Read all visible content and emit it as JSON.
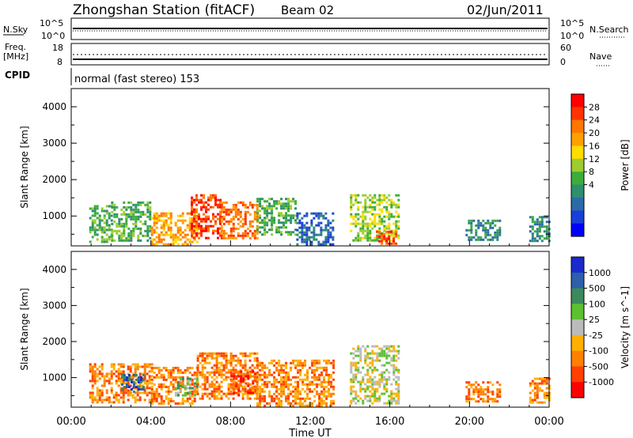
{
  "header": {
    "station": "Zhongshan Station (fitACF)",
    "beam": "Beam 02",
    "date": "02/Jun/2011"
  },
  "summary": {
    "nsky_label": "N.Sky",
    "nsky_ticks": [
      "10^5",
      "10^0"
    ],
    "nsearch_label": "N.Search",
    "nsearch_ticks": [
      "10^5",
      "10^0"
    ],
    "freq_label": "Freq.",
    "freq_unit": "[MHz]",
    "freq_ticks": [
      "18",
      "8"
    ],
    "nave_label": "Nave",
    "nave_ticks": [
      "60",
      "0"
    ],
    "cpid_label": "CPID",
    "cpid_text": "normal (fast stereo) 153"
  },
  "chart_data": [
    {
      "type": "heatmap",
      "name": "power",
      "ylabel": "Slant Range [km]",
      "yticks": [
        "4000",
        "3000",
        "2000",
        "1000"
      ],
      "ylim": [
        180,
        4500
      ],
      "xlim": [
        0,
        24
      ],
      "colorbar_label": "Power [dB]",
      "colorbar_ticks": [
        "28",
        "24",
        "20",
        "16",
        "12",
        "8",
        "4"
      ],
      "colorbar_colors": [
        "#ff0000",
        "#ff3300",
        "#ff7700",
        "#ffa000",
        "#ffdd00",
        "#9ccc30",
        "#3cad3c",
        "#2d8f6e",
        "#2b6aa8",
        "#1a3fd8",
        "#0000ff"
      ],
      "echo_regions": [
        {
          "t0": 0.9,
          "t1": 2.0,
          "r0": 300,
          "r1": 1300,
          "level": 6
        },
        {
          "t0": 2.0,
          "t1": 4.0,
          "r0": 300,
          "r1": 1400,
          "level": 6
        },
        {
          "t0": 4.0,
          "t1": 6.3,
          "r0": 250,
          "r1": 1100,
          "level": 3
        },
        {
          "t0": 6.0,
          "t1": 7.5,
          "r0": 400,
          "r1": 1600,
          "level": 1
        },
        {
          "t0": 7.5,
          "t1": 9.3,
          "r0": 400,
          "r1": 1400,
          "level": 2
        },
        {
          "t0": 9.3,
          "t1": 11.3,
          "r0": 500,
          "r1": 1500,
          "level": 6
        },
        {
          "t0": 11.3,
          "t1": 13.2,
          "r0": 250,
          "r1": 1100,
          "level": 8
        },
        {
          "t0": 14.0,
          "t1": 16.5,
          "r0": 300,
          "r1": 1600,
          "level": 5
        },
        {
          "t0": 15.3,
          "t1": 16.3,
          "r0": 250,
          "r1": 600,
          "level": 1
        },
        {
          "t0": 19.8,
          "t1": 21.5,
          "r0": 350,
          "r1": 900,
          "level": 7
        },
        {
          "t0": 23.0,
          "t1": 24.0,
          "r0": 300,
          "r1": 1000,
          "level": 7
        }
      ]
    },
    {
      "type": "heatmap",
      "name": "velocity",
      "ylabel": "Slant Range [km]",
      "yticks": [
        "4000",
        "3000",
        "2000",
        "1000"
      ],
      "ylim": [
        180,
        4500
      ],
      "xlim": [
        0,
        24
      ],
      "colorbar_label": "Velocity [m s^-1]",
      "colorbar_ticks": [
        "1000",
        "500",
        "100",
        "25",
        "-25",
        "-100",
        "-500",
        "-1000"
      ],
      "colorbar_colors": [
        "#1a2acc",
        "#2d5faa",
        "#3c8a5c",
        "#5cc030",
        "#bbbbbb",
        "#ffb000",
        "#ff8000",
        "#ff4000",
        "#ff0000"
      ],
      "echo_regions": [
        {
          "t0": 0.9,
          "t1": 4.0,
          "r0": 300,
          "r1": 1400,
          "level": 6
        },
        {
          "t0": 2.5,
          "t1": 3.6,
          "r0": 600,
          "r1": 1100,
          "level": 1
        },
        {
          "t0": 4.0,
          "t1": 6.3,
          "r0": 250,
          "r1": 1300,
          "level": 6
        },
        {
          "t0": 5.2,
          "t1": 6.3,
          "r0": 500,
          "r1": 1000,
          "level": 3
        },
        {
          "t0": 6.3,
          "t1": 9.3,
          "r0": 400,
          "r1": 1700,
          "level": 6
        },
        {
          "t0": 8.0,
          "t1": 9.2,
          "r0": 500,
          "r1": 1200,
          "level": 7
        },
        {
          "t0": 9.3,
          "t1": 13.2,
          "r0": 250,
          "r1": 1500,
          "level": 6
        },
        {
          "t0": 14.0,
          "t1": 16.5,
          "r0": 300,
          "r1": 1900,
          "level": 4
        },
        {
          "t0": 19.8,
          "t1": 21.5,
          "r0": 350,
          "r1": 900,
          "level": 6
        },
        {
          "t0": 23.0,
          "t1": 24.0,
          "r0": 300,
          "r1": 1000,
          "level": 6
        }
      ]
    }
  ],
  "xaxis": {
    "ticks": [
      "00:00",
      "04:00",
      "08:00",
      "12:00",
      "16:00",
      "20:00",
      "00:00"
    ],
    "label": "Time UT"
  }
}
